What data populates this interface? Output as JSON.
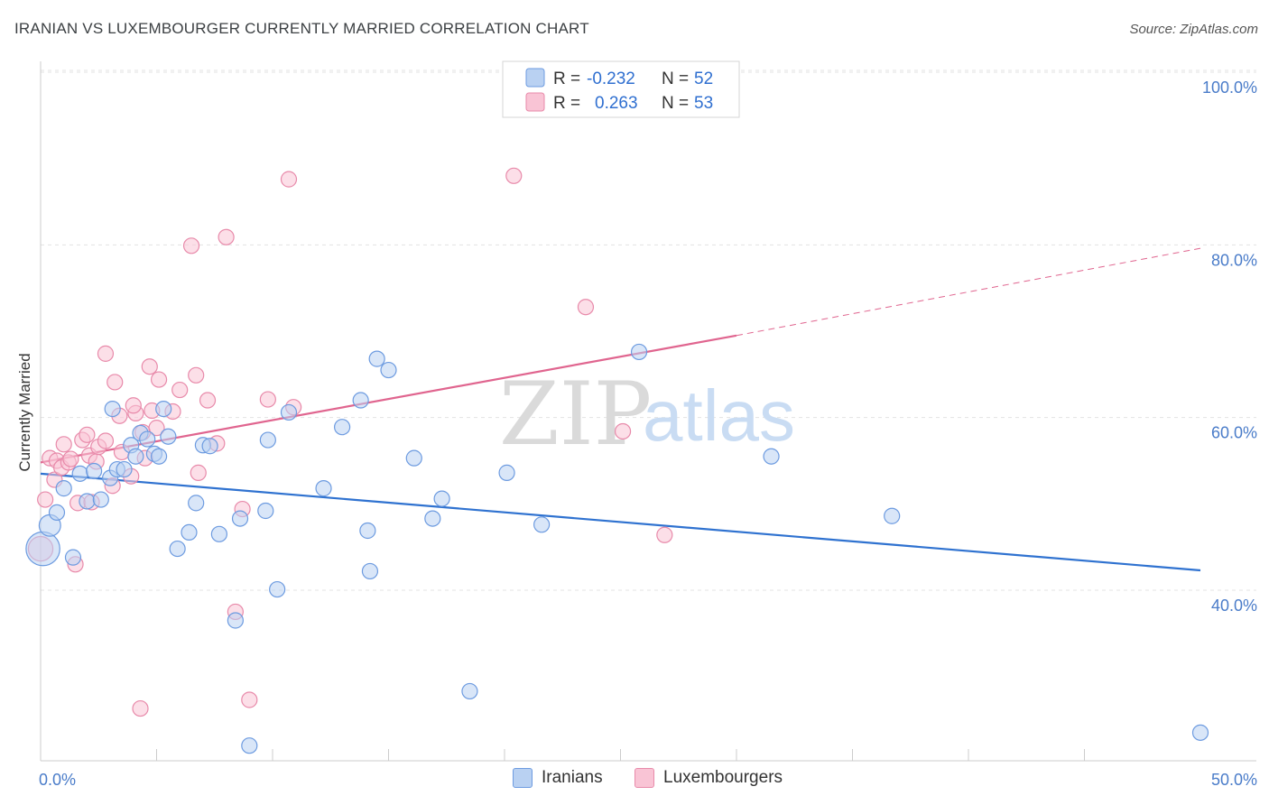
{
  "title": "IRANIAN VS LUXEMBOURGER CURRENTLY MARRIED CORRELATION CHART",
  "source": "Source: ZipAtlas.com",
  "watermark": {
    "zip": "ZIP",
    "atlas": "atlas"
  },
  "colors": {
    "iranians_fill": "#b9d1f2",
    "iranians_stroke": "#6d9be0",
    "iranians_line": "#2f72d0",
    "lux_fill": "#f9c4d5",
    "lux_stroke": "#e88aaa",
    "lux_line": "#e0658f",
    "tick_text": "#4a7cc9",
    "grid": "#e3e3e3"
  },
  "legend": {
    "rows": [
      {
        "r_label": "R =",
        "r_value": "-0.232",
        "n_label": "N =",
        "n_value": "52"
      },
      {
        "r_label": "R =",
        "r_value": "0.263",
        "n_label": "N =",
        "n_value": "53"
      }
    ]
  },
  "bottom_legend": {
    "iranians": "Iranians",
    "luxembourgers": "Luxembourgers"
  },
  "chart_data": {
    "type": "scatter",
    "ylabel": "Currently Married",
    "xlabel": "",
    "xlim": [
      0,
      50
    ],
    "ylim": [
      20,
      103
    ],
    "y_ticks": [
      {
        "value": 40,
        "label": "40.0%"
      },
      {
        "value": 60,
        "label": "60.0%"
      },
      {
        "value": 80,
        "label": "80.0%"
      },
      {
        "value": 100,
        "label": "100.0%"
      }
    ],
    "x_tick_labels": [
      {
        "value": 0,
        "label": "0.0%"
      },
      {
        "value": 50,
        "label": "50.0%"
      }
    ],
    "x_minor_ticks": [
      5,
      10,
      15,
      20,
      25,
      30,
      35,
      40,
      45
    ],
    "grid": true,
    "series": [
      {
        "name": "Iranians",
        "trend": {
          "x0": 0,
          "y0": 53.5,
          "x1": 50,
          "y1": 42.3
        },
        "points": [
          [
            0.1,
            44.8,
            2.2
          ],
          [
            0.4,
            47.5,
            1.4
          ],
          [
            0.7,
            49.0,
            1.0
          ],
          [
            1.0,
            51.8,
            1.0
          ],
          [
            1.4,
            43.8,
            1.0
          ],
          [
            1.7,
            53.5,
            1.0
          ],
          [
            2.0,
            50.3,
            1.0
          ],
          [
            2.3,
            53.8,
            1.0
          ],
          [
            2.6,
            50.5,
            1.0
          ],
          [
            3.0,
            53.0,
            1.0
          ],
          [
            3.1,
            61.0,
            1.0
          ],
          [
            3.3,
            54.0,
            1.0
          ],
          [
            3.6,
            54.0,
            1.0
          ],
          [
            3.9,
            56.8,
            1.0
          ],
          [
            4.1,
            55.5,
            1.0
          ],
          [
            4.3,
            58.2,
            1.0
          ],
          [
            4.6,
            57.5,
            1.0
          ],
          [
            4.9,
            55.8,
            1.0
          ],
          [
            5.1,
            55.5,
            1.0
          ],
          [
            5.3,
            61.0,
            1.0
          ],
          [
            5.5,
            57.8,
            1.0
          ],
          [
            5.9,
            44.8,
            1.0
          ],
          [
            6.4,
            46.7,
            1.0
          ],
          [
            6.7,
            50.1,
            1.0
          ],
          [
            7.0,
            56.8,
            1.0
          ],
          [
            7.3,
            56.7,
            1.0
          ],
          [
            7.7,
            46.5,
            1.0
          ],
          [
            8.4,
            36.5,
            1.0
          ],
          [
            8.6,
            48.3,
            1.0
          ],
          [
            9.0,
            22.0,
            1.0
          ],
          [
            9.7,
            49.2,
            1.0
          ],
          [
            9.8,
            57.4,
            1.0
          ],
          [
            10.2,
            40.1,
            1.0
          ],
          [
            10.7,
            60.6,
            1.0
          ],
          [
            12.2,
            51.8,
            1.0
          ],
          [
            13.0,
            58.9,
            1.0
          ],
          [
            13.8,
            62.0,
            1.0
          ],
          [
            14.1,
            46.9,
            1.0
          ],
          [
            14.2,
            42.2,
            1.0
          ],
          [
            14.5,
            66.8,
            1.0
          ],
          [
            15.0,
            65.5,
            1.0
          ],
          [
            16.1,
            55.3,
            1.0
          ],
          [
            16.9,
            48.3,
            1.0
          ],
          [
            17.3,
            50.6,
            1.0
          ],
          [
            18.5,
            28.3,
            1.0
          ],
          [
            20.1,
            53.6,
            1.0
          ],
          [
            21.6,
            47.6,
            1.0
          ],
          [
            25.8,
            67.6,
            1.0
          ],
          [
            31.5,
            55.5,
            1.0
          ],
          [
            36.7,
            48.6,
            1.0
          ],
          [
            50.0,
            23.5,
            1.0
          ]
        ]
      },
      {
        "name": "Luxembourgers",
        "trend": {
          "x0": 0,
          "y0": 54.8,
          "x1": 30,
          "y1": 69.5,
          "dash_to_x": 50,
          "dash_to_y": 79.6
        },
        "points": [
          [
            0.0,
            44.8,
            1.6
          ],
          [
            0.2,
            50.5,
            1.0
          ],
          [
            0.4,
            55.3,
            1.0
          ],
          [
            0.6,
            52.8,
            1.0
          ],
          [
            0.7,
            55.0,
            1.0
          ],
          [
            0.9,
            54.2,
            1.0
          ],
          [
            1.0,
            56.9,
            1.0
          ],
          [
            1.2,
            54.8,
            1.0
          ],
          [
            1.3,
            55.2,
            1.0
          ],
          [
            1.5,
            43.0,
            1.0
          ],
          [
            1.6,
            50.1,
            1.0
          ],
          [
            1.8,
            57.4,
            1.0
          ],
          [
            2.0,
            58.0,
            1.0
          ],
          [
            2.1,
            55.6,
            1.0
          ],
          [
            2.2,
            50.2,
            1.0
          ],
          [
            2.4,
            54.9,
            1.0
          ],
          [
            2.5,
            56.6,
            1.0
          ],
          [
            2.8,
            57.3,
            1.0
          ],
          [
            2.8,
            67.4,
            1.0
          ],
          [
            3.1,
            52.1,
            1.0
          ],
          [
            3.2,
            64.1,
            1.0
          ],
          [
            3.4,
            60.2,
            1.0
          ],
          [
            3.5,
            56.0,
            1.0
          ],
          [
            3.9,
            53.2,
            1.0
          ],
          [
            4.1,
            60.5,
            1.0
          ],
          [
            4.0,
            61.4,
            1.0
          ],
          [
            4.3,
            26.3,
            1.0
          ],
          [
            4.4,
            58.3,
            1.0
          ],
          [
            4.5,
            55.3,
            1.0
          ],
          [
            4.7,
            65.9,
            1.0
          ],
          [
            4.8,
            60.8,
            1.0
          ],
          [
            5.0,
            58.8,
            1.0
          ],
          [
            5.1,
            64.4,
            1.0
          ],
          [
            5.7,
            60.7,
            1.0
          ],
          [
            6.0,
            63.2,
            1.0
          ],
          [
            6.5,
            79.9,
            1.0
          ],
          [
            6.7,
            64.9,
            1.0
          ],
          [
            6.8,
            53.6,
            1.0
          ],
          [
            7.2,
            62.0,
            1.0
          ],
          [
            7.6,
            57.0,
            1.0
          ],
          [
            8.0,
            80.9,
            1.0
          ],
          [
            8.4,
            37.5,
            1.0
          ],
          [
            8.7,
            49.4,
            1.0
          ],
          [
            9.0,
            27.3,
            1.0
          ],
          [
            9.8,
            62.1,
            1.0
          ],
          [
            10.7,
            87.6,
            1.0
          ],
          [
            10.9,
            61.2,
            1.0
          ],
          [
            20.4,
            88.0,
            1.0
          ],
          [
            23.5,
            72.8,
            1.0
          ],
          [
            25.1,
            58.4,
            1.0
          ],
          [
            26.9,
            46.4,
            1.0
          ]
        ]
      }
    ]
  }
}
